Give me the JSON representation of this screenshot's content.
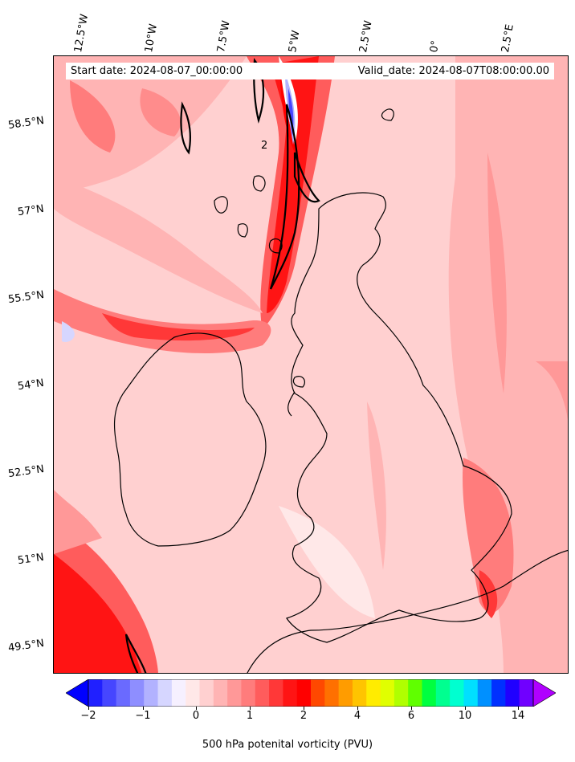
{
  "map": {
    "start_date": "Start date: 2024-08-07_00:00:00",
    "valid_date": "Valid_date: 2024-08-07T08:00:00.00",
    "lon_labels": [
      "12.5°W",
      "10°W",
      "7.5°W",
      "5°W",
      "2.5°W",
      "0°",
      "2.5°E"
    ],
    "lat_labels": [
      "58.5°N",
      "57°N",
      "55.5°N",
      "54°N",
      "52.5°N",
      "51°N",
      "49.5°N"
    ],
    "contour_label": "2"
  },
  "colorbar": {
    "label": "500 hPa potenital vorticity (PVU)",
    "ticks": [
      "−2",
      "−1",
      "0",
      "1",
      "2",
      "4",
      "6",
      "10",
      "14"
    ],
    "colors": [
      "#0000ff",
      "#2020ff",
      "#4646ff",
      "#6a6aff",
      "#8e8eff",
      "#b2b2ff",
      "#d6d6ff",
      "#f6f0ff",
      "#ffe8e8",
      "#ffd0d0",
      "#ffb4b4",
      "#ff9898",
      "#ff7c7c",
      "#ff5c5c",
      "#ff3838",
      "#ff1414",
      "#ff0000",
      "#ff4800",
      "#ff7000",
      "#ff9c00",
      "#ffc400",
      "#ffec00",
      "#e0ff00",
      "#b0ff00",
      "#60ff00",
      "#00ff40",
      "#00ff90",
      "#00ffd0",
      "#00e0ff",
      "#0090ff",
      "#0030ff",
      "#2000ff",
      "#7000ff",
      "#b000ff"
    ]
  }
}
